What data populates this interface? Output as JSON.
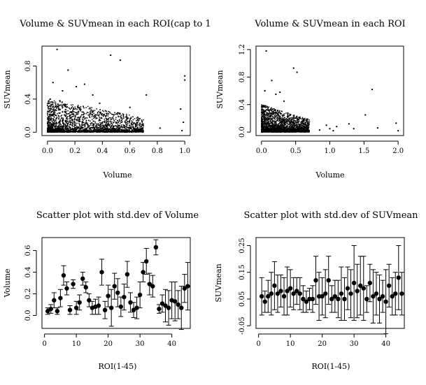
{
  "chart_data": [
    {
      "type": "scatter",
      "title": "Volume & SUVmean in each ROI(cap to 1",
      "xlabel": "Volume",
      "ylabel": "SUVmean",
      "xlim": [
        -0.04,
        1.04
      ],
      "ylim": [
        -0.04,
        1.04
      ],
      "xticks": [
        "0.0",
        "0.2",
        "0.4",
        "0.6",
        "0.8",
        "1.0"
      ],
      "xtick_values": [
        0,
        0.2,
        0.4,
        0.6,
        0.8,
        1.0
      ],
      "yticks": [
        "0.0",
        "0.4",
        "0.8"
      ],
      "ytick_values": [
        0,
        0.4,
        0.8
      ],
      "x": [
        0.07,
        0.46,
        0.53,
        0.21,
        0.15,
        0.04,
        0.33,
        0.11,
        0.38,
        0.6,
        0.72,
        1.0,
        1.0,
        0.97,
        0.99,
        0.82,
        0.98,
        0.27,
        0.02,
        0.09
      ],
      "y": [
        1.0,
        0.93,
        0.87,
        0.55,
        0.75,
        0.6,
        0.45,
        0.5,
        0.35,
        0.3,
        0.45,
        0.68,
        0.63,
        0.28,
        0.12,
        0.05,
        0.02,
        0.58,
        0.4,
        0.38
      ],
      "dense_region": {
        "x_range": [
          0.0,
          0.7
        ],
        "y_range": [
          0.0,
          0.4
        ],
        "n_points": 2600
      }
    },
    {
      "type": "scatter",
      "title": "Volume & SUVmean in each ROI",
      "xlabel": "Volume",
      "ylabel": "SUVmean",
      "xlim": [
        -0.08,
        2.08
      ],
      "ylim": [
        -0.05,
        1.25
      ],
      "xticks": [
        "0.0",
        "0.5",
        "1.0",
        "1.5",
        "2.0"
      ],
      "xtick_values": [
        0,
        0.5,
        1.0,
        1.5,
        2.0
      ],
      "yticks": [
        "0.0",
        "0.4",
        "0.8",
        "1.2"
      ],
      "ytick_values": [
        0,
        0.4,
        0.8,
        1.2
      ],
      "x": [
        0.07,
        0.47,
        0.52,
        0.21,
        0.15,
        0.05,
        0.33,
        0.95,
        1.0,
        1.05,
        1.28,
        1.62,
        1.52,
        2.0,
        1.97,
        1.35,
        1.1,
        0.85,
        1.7,
        0.27
      ],
      "y": [
        1.18,
        0.93,
        0.87,
        0.55,
        0.75,
        0.6,
        0.45,
        0.1,
        0.05,
        0.02,
        0.12,
        0.62,
        0.25,
        0.02,
        0.13,
        0.05,
        0.08,
        0.03,
        0.06,
        0.58
      ],
      "dense_region": {
        "x_range": [
          0.0,
          0.7
        ],
        "y_range": [
          0.0,
          0.4
        ],
        "n_points": 2600
      }
    },
    {
      "type": "scatter",
      "title": "Scatter plot with std.dev of Volume",
      "xlabel": "ROI(1-45)",
      "ylabel": "Volume",
      "xlim": [
        -0.8,
        45.8
      ],
      "ylim": [
        -0.12,
        0.72
      ],
      "xticks": [
        "0",
        "10",
        "20",
        "30",
        "40"
      ],
      "xtick_values": [
        0,
        10,
        20,
        30,
        40
      ],
      "yticks": [
        "0.0",
        "0.2",
        "0.4",
        "0.6"
      ],
      "ytick_values": [
        0,
        0.2,
        0.4,
        0.6
      ],
      "x": [
        1,
        2,
        3,
        4,
        5,
        6,
        7,
        8,
        9,
        10,
        11,
        12,
        13,
        14,
        15,
        16,
        17,
        18,
        19,
        20,
        21,
        22,
        23,
        24,
        25,
        26,
        27,
        28,
        29,
        30,
        31,
        32,
        33,
        34,
        35,
        36,
        37,
        38,
        39,
        40,
        41,
        42,
        43,
        44,
        45
      ],
      "y": [
        0.04,
        0.06,
        0.14,
        0.04,
        0.16,
        0.37,
        0.25,
        0.05,
        0.29,
        0.07,
        0.12,
        0.34,
        0.26,
        0.14,
        0.07,
        0.08,
        0.09,
        0.4,
        0.05,
        0.18,
        0.07,
        0.27,
        0.21,
        0.08,
        0.17,
        0.38,
        0.12,
        0.05,
        0.07,
        0.19,
        0.4,
        0.5,
        0.29,
        0.27,
        0.63,
        0.06,
        0.11,
        0.09,
        0.07,
        0.14,
        0.13,
        0.1,
        0.07,
        0.25,
        0.27
      ],
      "err": [
        0.03,
        0.04,
        0.07,
        0.03,
        0.08,
        0.09,
        0.06,
        0.04,
        0.04,
        0.06,
        0.07,
        0.06,
        0.05,
        0.06,
        0.06,
        0.07,
        0.08,
        0.12,
        0.08,
        0.1,
        0.17,
        0.12,
        0.13,
        0.09,
        0.12,
        0.12,
        0.09,
        0.07,
        0.1,
        0.12,
        0.09,
        0.12,
        0.1,
        0.1,
        0.07,
        0.04,
        0.08,
        0.15,
        0.16,
        0.17,
        0.18,
        0.13,
        0.2,
        0.13,
        0.22
      ]
    },
    {
      "type": "scatter",
      "title": "Scatter plot with std.dev of SUVmean",
      "xlabel": "ROI(1-45)",
      "ylabel": "SUVmean",
      "xlim": [
        -0.8,
        45.8
      ],
      "ylim": [
        -0.06,
        0.28
      ],
      "xticks": [
        "0",
        "10",
        "20",
        "30",
        "40"
      ],
      "xtick_values": [
        0,
        10,
        20,
        30,
        40
      ],
      "yticks": [
        "-0.05",
        "0.05",
        "0.15",
        "0.25"
      ],
      "ytick_values": [
        -0.05,
        0.05,
        0.15,
        0.25
      ],
      "x": [
        1,
        2,
        3,
        4,
        5,
        6,
        7,
        8,
        9,
        10,
        11,
        12,
        13,
        14,
        15,
        16,
        17,
        18,
        19,
        20,
        21,
        22,
        23,
        24,
        25,
        26,
        27,
        28,
        29,
        30,
        31,
        32,
        33,
        34,
        35,
        36,
        37,
        38,
        39,
        40,
        41,
        42,
        43,
        44,
        45
      ],
      "y": [
        0.06,
        0.04,
        0.06,
        0.07,
        0.1,
        0.07,
        0.08,
        0.06,
        0.08,
        0.09,
        0.07,
        0.08,
        0.07,
        0.05,
        0.04,
        0.05,
        0.05,
        0.12,
        0.06,
        0.06,
        0.07,
        0.12,
        0.05,
        0.06,
        0.05,
        0.07,
        0.05,
        0.09,
        0.07,
        0.11,
        0.08,
        0.1,
        0.09,
        0.05,
        0.11,
        0.06,
        0.07,
        0.05,
        0.06,
        0.04,
        0.1,
        0.06,
        0.07,
        0.13,
        0.07
      ],
      "err": [
        0.07,
        0.04,
        0.06,
        0.08,
        0.09,
        0.07,
        0.06,
        0.07,
        0.09,
        0.07,
        0.06,
        0.05,
        0.06,
        0.05,
        0.04,
        0.04,
        0.05,
        0.09,
        0.09,
        0.07,
        0.09,
        0.09,
        0.05,
        0.06,
        0.07,
        0.1,
        0.08,
        0.08,
        0.09,
        0.14,
        0.1,
        0.11,
        0.12,
        0.05,
        0.07,
        0.1,
        0.08,
        0.09,
        0.06,
        0.12,
        0.08,
        0.07,
        0.08,
        0.12,
        0.08
      ]
    }
  ]
}
